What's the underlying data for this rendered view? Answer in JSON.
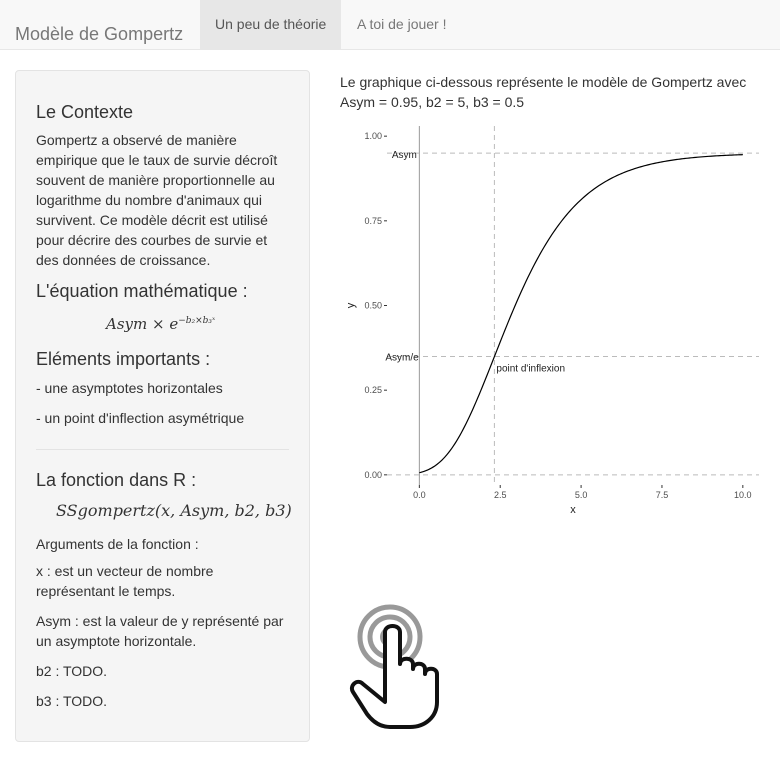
{
  "navbar": {
    "brand": "Modèle de Gompertz",
    "tabs": [
      {
        "label": "Un peu de théorie",
        "active": true
      },
      {
        "label": "A toi de jouer !",
        "active": false
      }
    ]
  },
  "sidebar": {
    "context_title": "Le Contexte",
    "context_text": "Gompertz a observé de manière empirique que le taux de survie décroît souvent de manière proportionnelle au logarithme du nombre d'animaux qui survivent. Ce modèle décrit est utilisé pour décrire des courbes de survie et des données de croissance.",
    "equation_title": "L'équation mathématique :",
    "equation": "Asym × e",
    "equation_exponent": "−b₂×b₃ˣ",
    "important_title": "Eléments importants :",
    "important_items": [
      "- une asymptotes horizontales",
      "- un point d'inflection asymétrique"
    ],
    "function_title": "La fonction dans R :",
    "function_formula": "SSgompertz(x, Asym, b2, b3)",
    "args_title": "Arguments de la fonction :",
    "arg_x": "x : est un vecteur de nombre représentant le temps.",
    "arg_asym": "Asym : est la valeur de y représenté par un asymptote horizontale.",
    "arg_b2": "b2 : TODO.",
    "arg_b3": "b3 : TODO."
  },
  "main": {
    "description_line1": "Le graphique ci-dessous représente le modèle de Gompertz avec",
    "description_line2": "Asym = 0.95, b2 = 5, b3 = 0.5"
  },
  "chart_data": {
    "type": "line",
    "xlabel": "x",
    "ylabel": "y",
    "xlim": [
      -1,
      10.5
    ],
    "ylim": [
      -0.03,
      1.03
    ],
    "xticks": [
      "0.0",
      "2.5",
      "5.0",
      "7.5",
      "10.0"
    ],
    "xtick_values": [
      0,
      2.5,
      5,
      7.5,
      10
    ],
    "yticks": [
      "0.00",
      "0.25",
      "0.50",
      "0.75",
      "1.00"
    ],
    "ytick_values": [
      0,
      0.25,
      0.5,
      0.75,
      1.0
    ],
    "params": {
      "Asym": 0.95,
      "b2": 5,
      "b3": 0.5
    },
    "annotations": [
      {
        "label": "Asym",
        "y": 0.95
      },
      {
        "label": "Asym/e",
        "y": 0.3495
      },
      {
        "label": "point d'inflexion",
        "x": 2.32
      }
    ],
    "colors": {
      "curve": "#000000",
      "guide": "#bbbbbb",
      "axis_line": "#999999"
    }
  }
}
